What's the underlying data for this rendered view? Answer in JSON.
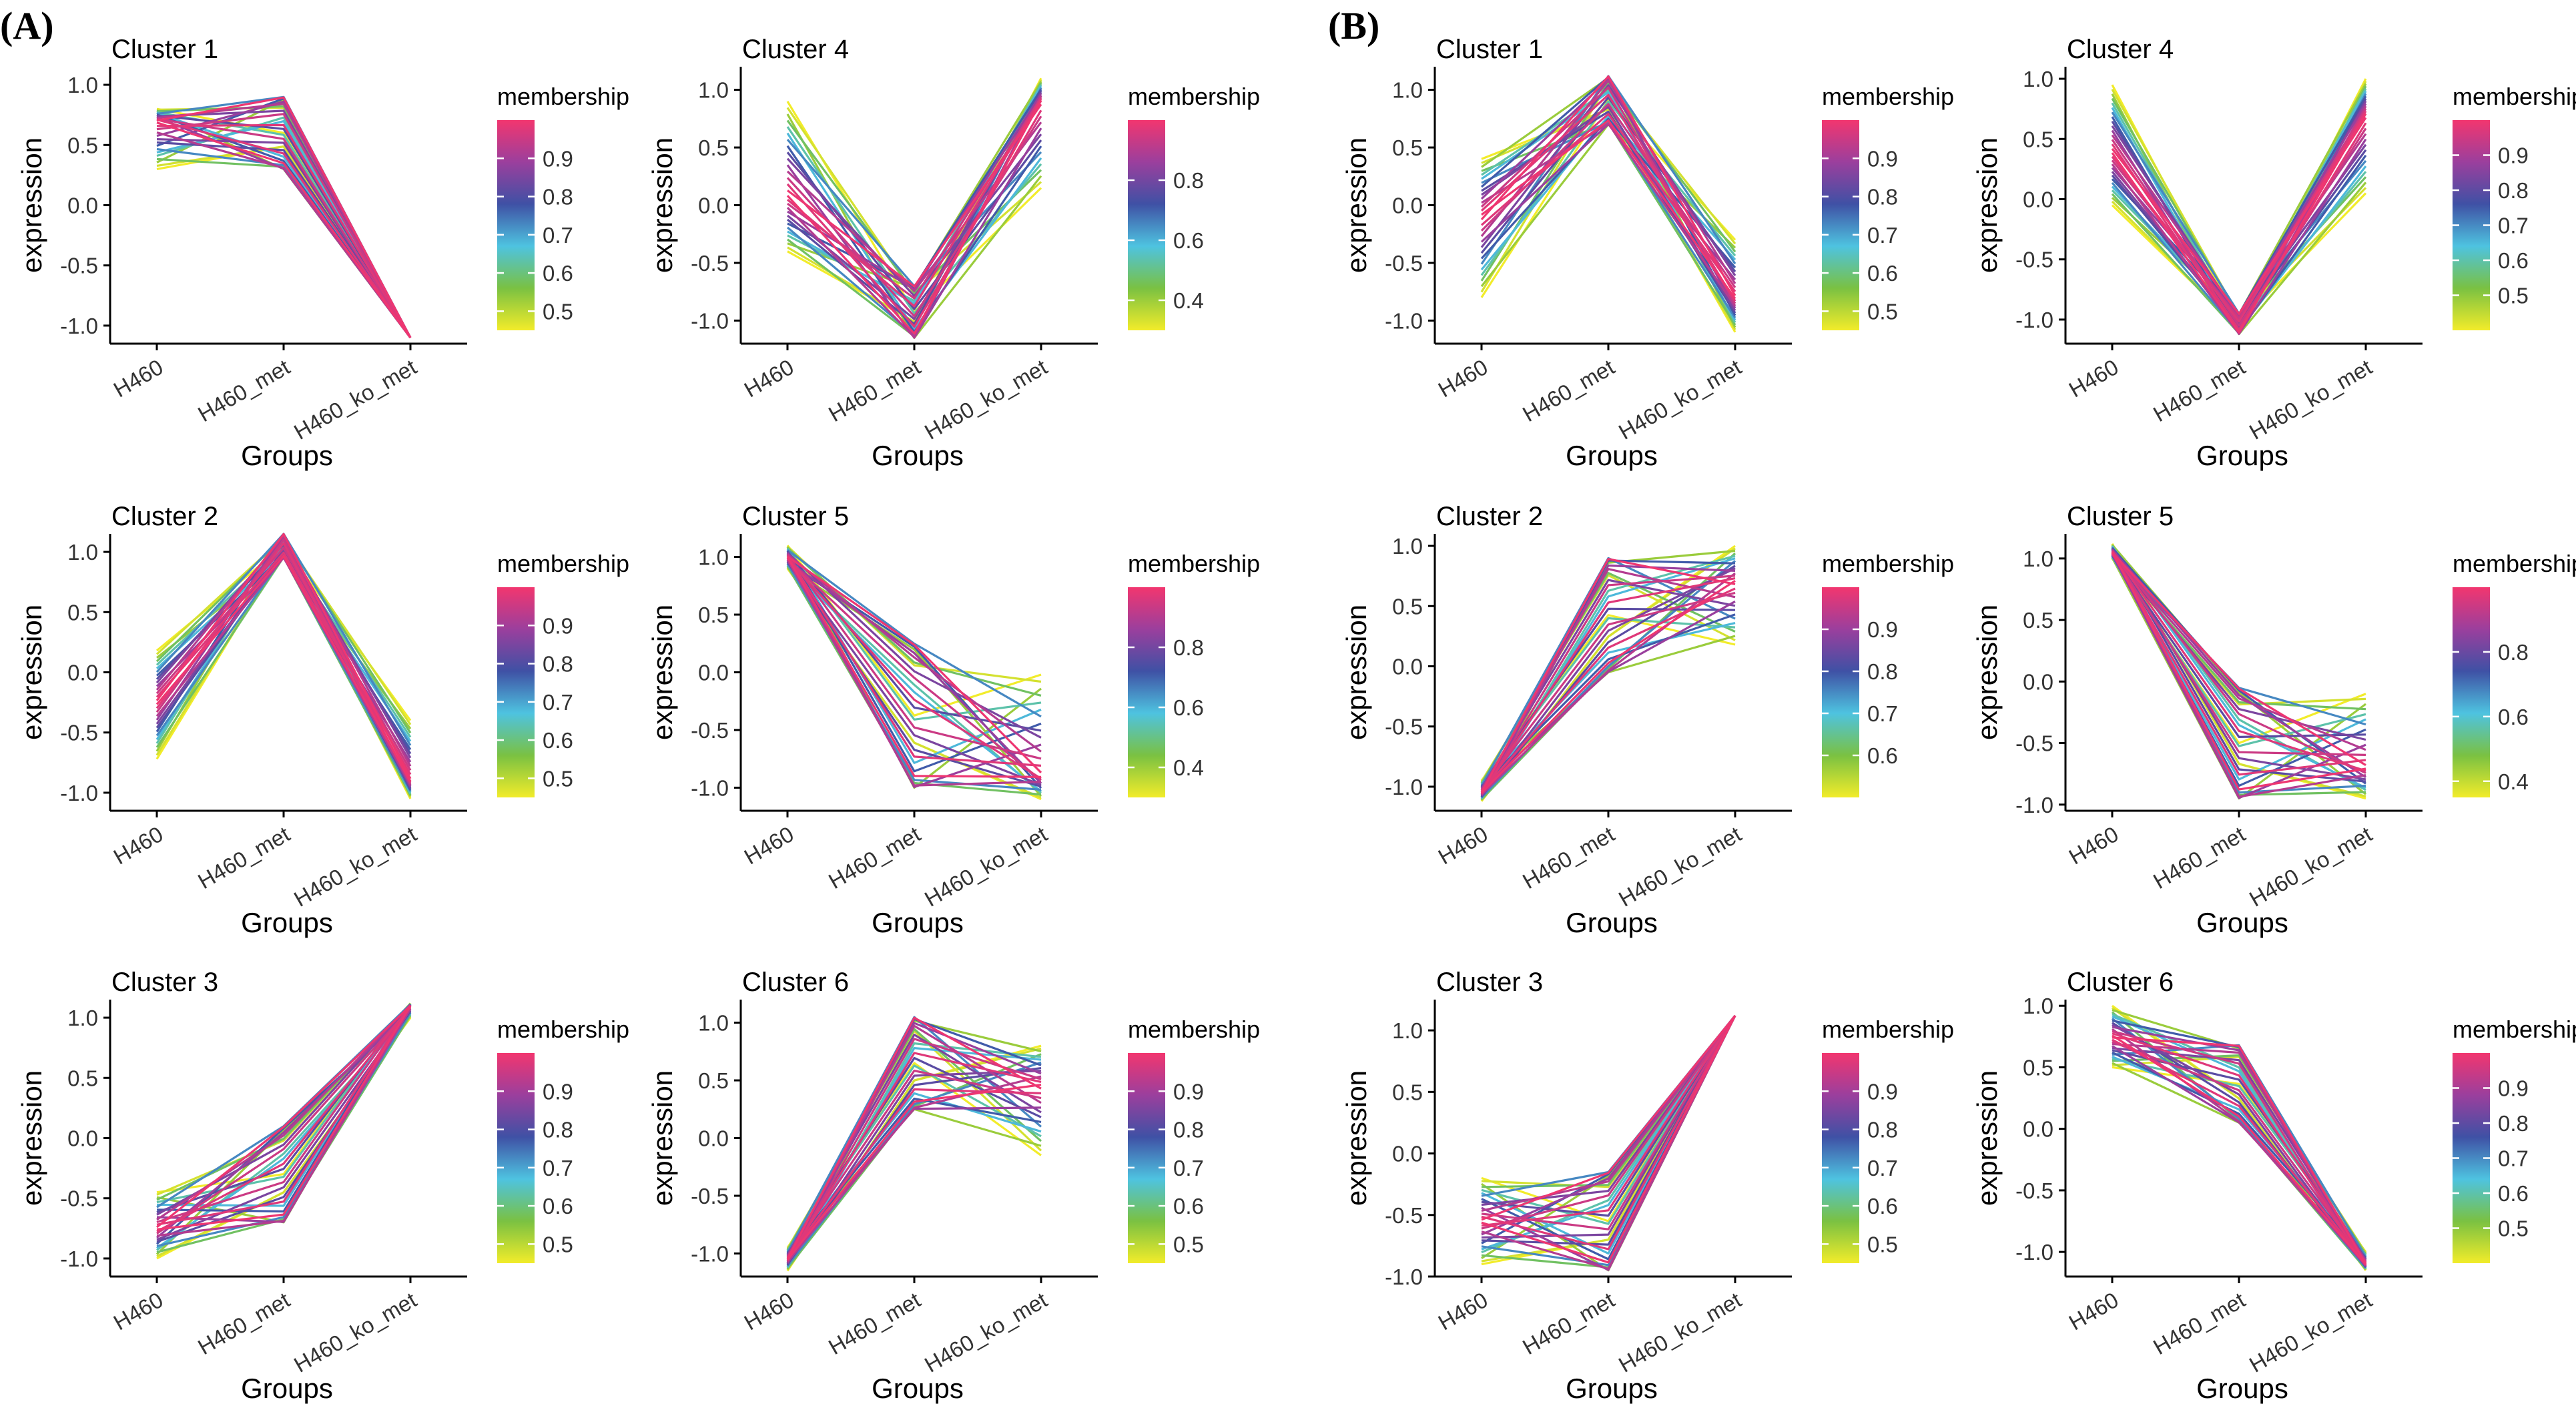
{
  "figure": {
    "panel_labels": [
      "(A)",
      "(B)"
    ],
    "axis_x_label": "Groups",
    "axis_y_label": "expression",
    "legend_title": "membership",
    "group_labels": [
      "H460",
      "H460_met",
      "H460_ko_met"
    ],
    "gradient_colors": [
      "#f2ec2a",
      "#7ac142",
      "#4ec3e0",
      "#3f51a5",
      "#9b3f9d",
      "#f2366f"
    ],
    "axis_color": "#000000"
  },
  "chart_data": [
    {
      "type": "line",
      "panel": "(A)",
      "title": "Cluster 1",
      "xlabel": "Groups",
      "ylabel": "expression",
      "categories": [
        "H460",
        "H460_met",
        "H460_ko_met"
      ],
      "ylim": [
        -1.15,
        1.15
      ],
      "yticks": [
        1.0,
        0.5,
        0.0,
        -0.5,
        -1.0
      ],
      "legend": {
        "title": "membership",
        "min": 0.45,
        "max": 1.0,
        "ticks": [
          0.9,
          0.8,
          0.7,
          0.6,
          0.5
        ]
      },
      "series": [
        {
          "start": 0.8,
          "mid": 0.55,
          "end": -1.1
        },
        {
          "start": 0.3,
          "mid": 0.55,
          "end": -1.1
        },
        {
          "start": 0.7,
          "mid": 0.55,
          "end": -1.1
        }
      ],
      "mid_range": [
        0.3,
        0.9
      ]
    },
    {
      "type": "line",
      "panel": "(A)",
      "title": "Cluster 2",
      "xlabel": "Groups",
      "ylabel": "expression",
      "categories": [
        "H460",
        "H460_met",
        "H460_ko_met"
      ],
      "ylim": [
        -1.15,
        1.15
      ],
      "yticks": [
        1.0,
        0.5,
        0.0,
        -0.5,
        -1.0
      ],
      "legend": {
        "title": "membership",
        "min": 0.45,
        "max": 1.0,
        "ticks": [
          0.9,
          0.8,
          0.7,
          0.6,
          0.5
        ]
      },
      "series": [
        {
          "start": 0.18,
          "mid": 1.12,
          "end": -0.4
        },
        {
          "start": -0.72,
          "mid": 1.12,
          "end": -1.05
        },
        {
          "start": -0.25,
          "mid": 1.0,
          "end": -0.9
        }
      ],
      "mid_range": [
        0.95,
        1.15
      ]
    },
    {
      "type": "line",
      "panel": "(A)",
      "title": "Cluster 3",
      "xlabel": "Groups",
      "ylabel": "expression",
      "categories": [
        "H460",
        "H460_met",
        "H460_ko_met"
      ],
      "ylim": [
        -1.15,
        1.15
      ],
      "yticks": [
        1.0,
        0.5,
        0.0,
        -0.5,
        -1.0
      ],
      "legend": {
        "title": "membership",
        "min": 0.45,
        "max": 1.0,
        "ticks": [
          0.9,
          0.8,
          0.7,
          0.6,
          0.5
        ]
      },
      "series": [
        {
          "start": -0.45,
          "mid": -0.55,
          "end": 1.12
        },
        {
          "start": -1.0,
          "mid": -0.55,
          "end": 1.0
        },
        {
          "start": -0.75,
          "mid": -0.55,
          "end": 1.1
        }
      ],
      "mid_range": [
        -0.7,
        0.1
      ]
    },
    {
      "type": "line",
      "panel": "(A)",
      "title": "Cluster 4",
      "xlabel": "Groups",
      "ylabel": "expression",
      "categories": [
        "H460",
        "H460_met",
        "H460_ko_met"
      ],
      "ylim": [
        -1.2,
        1.2
      ],
      "yticks": [
        1.0,
        0.5,
        0.0,
        -0.5,
        -1.0
      ],
      "legend": {
        "title": "membership",
        "min": 0.3,
        "max": 1.0,
        "ticks": [
          0.8,
          0.6,
          0.4
        ]
      },
      "series": [
        {
          "start": 0.9,
          "mid": -0.7,
          "end": 0.15
        },
        {
          "start": -0.4,
          "mid": -1.1,
          "end": 1.1
        },
        {
          "start": 0.1,
          "mid": -0.8,
          "end": 0.9
        }
      ],
      "mid_range": [
        -1.15,
        -0.7
      ]
    },
    {
      "type": "line",
      "panel": "(A)",
      "title": "Cluster 5",
      "xlabel": "Groups",
      "ylabel": "expression",
      "categories": [
        "H460",
        "H460_met",
        "H460_ko_met"
      ],
      "ylim": [
        -1.2,
        1.2
      ],
      "yticks": [
        1.0,
        0.5,
        0.0,
        -0.5,
        -1.0
      ],
      "legend": {
        "title": "membership",
        "min": 0.3,
        "max": 1.0,
        "ticks": [
          0.8,
          0.6,
          0.4
        ]
      },
      "series": [
        {
          "start": 1.1,
          "mid": -1.0,
          "end": -0.02
        },
        {
          "start": 0.9,
          "mid": 0.25,
          "end": -1.1
        },
        {
          "start": 1.0,
          "mid": -0.3,
          "end": -0.9
        }
      ],
      "mid_range": [
        -1.0,
        0.25
      ]
    },
    {
      "type": "line",
      "panel": "(A)",
      "title": "Cluster 6",
      "xlabel": "Groups",
      "ylabel": "expression",
      "categories": [
        "H460",
        "H460_met",
        "H460_ko_met"
      ],
      "ylim": [
        -1.2,
        1.2
      ],
      "yticks": [
        1.0,
        0.5,
        0.0,
        -0.5,
        -1.0
      ],
      "legend": {
        "title": "membership",
        "min": 0.45,
        "max": 1.0,
        "ticks": [
          0.9,
          0.8,
          0.7,
          0.6,
          0.5
        ]
      },
      "series": [
        {
          "start": -0.95,
          "mid": 1.05,
          "end": -0.15
        },
        {
          "start": -1.15,
          "mid": 0.3,
          "end": 0.8
        },
        {
          "start": -1.05,
          "mid": 0.7,
          "end": 0.45
        }
      ],
      "mid_range": [
        0.25,
        1.05
      ]
    },
    {
      "type": "line",
      "panel": "(B)",
      "title": "Cluster 1",
      "xlabel": "Groups",
      "ylabel": "expression",
      "categories": [
        "H460",
        "H460_met",
        "H460_ko_met"
      ],
      "ylim": [
        -1.2,
        1.2
      ],
      "yticks": [
        1.0,
        0.5,
        0.0,
        -0.5,
        -1.0
      ],
      "legend": {
        "title": "membership",
        "min": 0.45,
        "max": 1.0,
        "ticks": [
          0.9,
          0.8,
          0.7,
          0.6,
          0.5
        ]
      },
      "series": [
        {
          "start": -0.8,
          "mid": 0.75,
          "end": -0.3
        },
        {
          "start": 0.4,
          "mid": 1.1,
          "end": -1.1
        },
        {
          "start": -0.1,
          "mid": 0.95,
          "end": -0.8
        }
      ],
      "mid_range": [
        0.7,
        1.12
      ]
    },
    {
      "type": "line",
      "panel": "(B)",
      "title": "Cluster 2",
      "xlabel": "Groups",
      "ylabel": "expression",
      "categories": [
        "H460",
        "H460_met",
        "H460_ko_met"
      ],
      "ylim": [
        -1.2,
        1.1
      ],
      "yticks": [
        1.0,
        0.5,
        0.0,
        -0.5,
        -1.0
      ],
      "legend": {
        "title": "membership",
        "min": 0.5,
        "max": 1.0,
        "ticks": [
          0.9,
          0.8,
          0.7,
          0.6
        ]
      },
      "series": [
        {
          "start": -0.95,
          "mid": 0.9,
          "end": 0.18
        },
        {
          "start": -1.12,
          "mid": -0.05,
          "end": 1.0
        },
        {
          "start": -1.05,
          "mid": 0.45,
          "end": 0.7
        }
      ],
      "mid_range": [
        -0.05,
        0.9
      ]
    },
    {
      "type": "line",
      "panel": "(B)",
      "title": "Cluster 3",
      "xlabel": "Groups",
      "ylabel": "expression",
      "categories": [
        "H460",
        "H460_met",
        "H460_ko_met"
      ],
      "ylim": [
        -1.0,
        1.25
      ],
      "yticks": [
        1.0,
        0.5,
        0.0,
        -0.5,
        -1.0
      ],
      "legend": {
        "title": "membership",
        "min": 0.45,
        "max": 1.0,
        "ticks": [
          0.9,
          0.8,
          0.7,
          0.6,
          0.5
        ]
      },
      "series": [
        {
          "start": -0.2,
          "mid": -0.95,
          "end": 1.12
        },
        {
          "start": -0.9,
          "mid": -0.15,
          "end": 1.12
        },
        {
          "start": -0.55,
          "mid": -0.5,
          "end": 1.12
        }
      ],
      "mid_range": [
        -0.95,
        -0.15
      ]
    },
    {
      "type": "line",
      "panel": "(B)",
      "title": "Cluster 4",
      "xlabel": "Groups",
      "ylabel": "expression",
      "categories": [
        "H460",
        "H460_met",
        "H460_ko_met"
      ],
      "ylim": [
        -1.2,
        1.1
      ],
      "yticks": [
        1.0,
        0.5,
        0.0,
        -0.5,
        -1.0
      ],
      "legend": {
        "title": "membership",
        "min": 0.4,
        "max": 1.0,
        "ticks": [
          0.9,
          0.8,
          0.7,
          0.6,
          0.5
        ]
      },
      "series": [
        {
          "start": 0.95,
          "mid": -0.95,
          "end": 0.05
        },
        {
          "start": -0.05,
          "mid": -1.1,
          "end": 1.0
        },
        {
          "start": 0.4,
          "mid": -1.05,
          "end": 0.7
        }
      ],
      "mid_range": [
        -1.12,
        -0.95
      ]
    },
    {
      "type": "line",
      "panel": "(B)",
      "title": "Cluster 5",
      "xlabel": "Groups",
      "ylabel": "expression",
      "categories": [
        "H460",
        "H460_met",
        "H460_ko_met"
      ],
      "ylim": [
        -1.05,
        1.2
      ],
      "yticks": [
        1.0,
        0.5,
        0.0,
        -0.5,
        -1.0
      ],
      "legend": {
        "title": "membership",
        "min": 0.35,
        "max": 1.0,
        "ticks": [
          0.8,
          0.6,
          0.4
        ]
      },
      "series": [
        {
          "start": 1.0,
          "mid": -0.95,
          "end": -0.1
        },
        {
          "start": 1.12,
          "mid": -0.05,
          "end": -0.95
        },
        {
          "start": 1.05,
          "mid": -0.4,
          "end": -0.7
        }
      ],
      "mid_range": [
        -0.95,
        -0.05
      ]
    },
    {
      "type": "line",
      "panel": "(B)",
      "title": "Cluster 6",
      "xlabel": "Groups",
      "ylabel": "expression",
      "categories": [
        "H460",
        "H460_met",
        "H460_ko_met"
      ],
      "ylim": [
        -1.2,
        1.05
      ],
      "yticks": [
        1.0,
        0.5,
        0.0,
        -0.5,
        -1.0
      ],
      "legend": {
        "title": "membership",
        "min": 0.4,
        "max": 1.0,
        "ticks": [
          0.9,
          0.8,
          0.7,
          0.6,
          0.5
        ]
      },
      "series": [
        {
          "start": 0.5,
          "mid": 0.65,
          "end": -1.0
        },
        {
          "start": 1.0,
          "mid": 0.1,
          "end": -1.15
        },
        {
          "start": 0.75,
          "mid": 0.4,
          "end": -1.1
        }
      ],
      "mid_range": [
        0.05,
        0.68
      ]
    }
  ]
}
